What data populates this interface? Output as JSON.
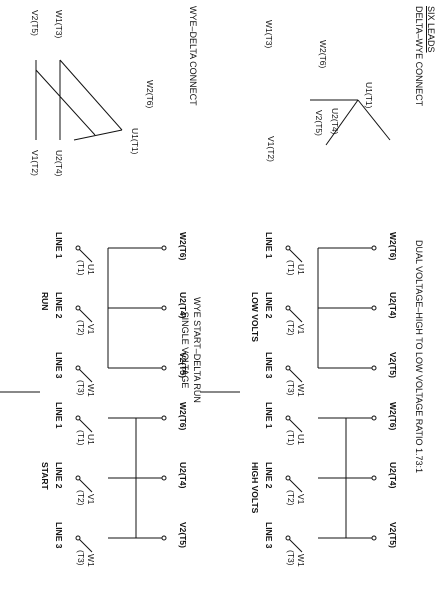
{
  "header": {
    "title": "SIX LEADS",
    "delta_wye": "DELTA–WYE CONNECT",
    "wye_delta": "WYE–DELTA CONNECT",
    "dual_voltage": "DUAL VOLTAGE–HIGH TO LOW VOLTAGE RATIO 1.73:1",
    "wye_start_1": "WYE START–DELTA RUN",
    "wye_start_2": "SINGLE VOLTAGE"
  },
  "leads": {
    "u1": "U1(T1)",
    "v1": "V1(T2)",
    "w1": "W1(T3)",
    "u2": "U2(T4)",
    "v2": "V2(T5)",
    "w2": "W2(T6)"
  },
  "switch_labels": {
    "u1a": "U1",
    "u1b": "(T1)",
    "v1a": "V1",
    "v1b": "(T2)",
    "w1a": "W1",
    "w1b": "(T3)"
  },
  "lines": {
    "l1": "LINE 1",
    "l2": "LINE 2",
    "l3": "LINE 3"
  },
  "captions": {
    "low_volts": "LOW VOLTS",
    "high_volts": "HIGH VOLTS",
    "run": "RUN",
    "start": "START"
  }
}
